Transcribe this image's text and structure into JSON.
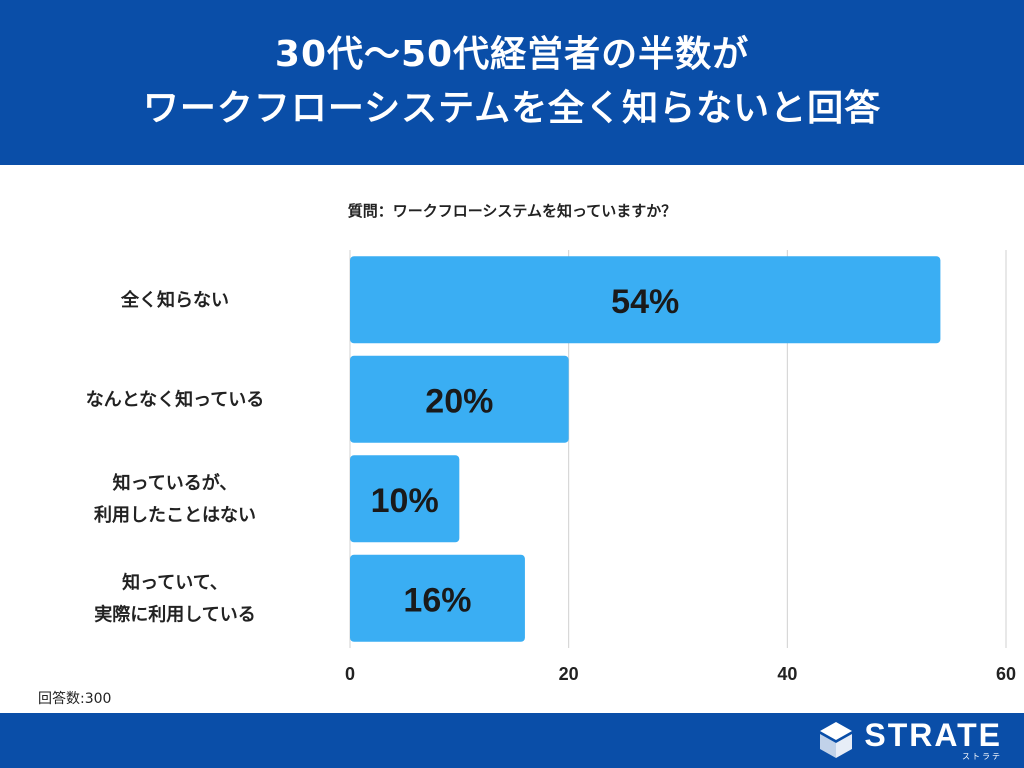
{
  "header": {
    "title_line1": "30代〜50代経営者の半数が",
    "title_line2": "ワークフローシステムを全く知らないと回答"
  },
  "question": "質問：ワークフローシステムを知っていますか？",
  "respondents": "回答数:300",
  "logo": {
    "main": "STRATE",
    "sub": "ストラテ"
  },
  "colors": {
    "header_bg": "#0a4ea8",
    "bar": "#3aaef3",
    "grid": "#d0d0d0"
  },
  "chart_data": {
    "type": "bar",
    "orientation": "horizontal",
    "categories": [
      [
        "全く知らない"
      ],
      [
        "なんとなく知っている"
      ],
      [
        "知っているが、",
        "利用したことはない"
      ],
      [
        "知っていて、",
        "実際に利用している"
      ]
    ],
    "values": [
      54,
      20,
      10,
      16
    ],
    "data_labels": [
      "54%",
      "20%",
      "10%",
      "16%"
    ],
    "xlim": [
      0,
      60
    ],
    "xticks": [
      0,
      20,
      40,
      60
    ],
    "xtick_labels": [
      "0",
      "20",
      "40",
      "60"
    ],
    "grid": true
  }
}
